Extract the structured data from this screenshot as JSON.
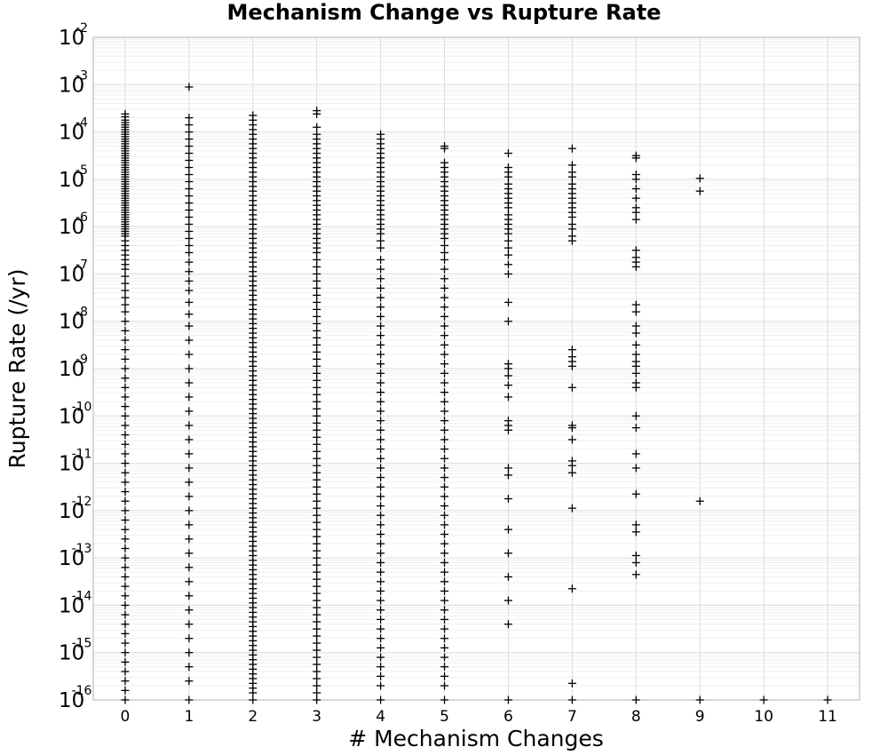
{
  "chart_data": {
    "type": "scatter",
    "title": "Mechanism Change vs Rupture Rate",
    "xlabel": "# Mechanism Changes",
    "ylabel": "Rupture Rate (/yr)",
    "x_ticks": [
      "0",
      "1",
      "2",
      "3",
      "4",
      "5",
      "6",
      "7",
      "8",
      "9",
      "10",
      "11"
    ],
    "xlim": [
      -0.5,
      11.5
    ],
    "y_scale": "log",
    "ylim": [
      1e-16,
      0.01
    ],
    "y_ticks": [
      {
        "base": "10",
        "exp": "-2"
      },
      {
        "base": "10",
        "exp": "-3"
      },
      {
        "base": "10",
        "exp": "-4"
      },
      {
        "base": "10",
        "exp": "-5"
      },
      {
        "base": "10",
        "exp": "-6"
      },
      {
        "base": "10",
        "exp": "-7"
      },
      {
        "base": "10",
        "exp": "-8"
      },
      {
        "base": "10",
        "exp": "-9"
      },
      {
        "base": "10",
        "exp": "-10"
      },
      {
        "base": "10",
        "exp": "-11"
      },
      {
        "base": "10",
        "exp": "-12"
      },
      {
        "base": "10",
        "exp": "-13"
      },
      {
        "base": "10",
        "exp": "-14"
      },
      {
        "base": "10",
        "exp": "-15"
      },
      {
        "base": "10",
        "exp": "-16"
      }
    ],
    "grid": true,
    "marker": "plus",
    "marker_color": "#000000",
    "series": [
      {
        "x": 0,
        "log10_rate": [
          -3.62,
          -3.68,
          -3.75,
          -3.8,
          -3.85,
          -3.9,
          -3.95,
          -4.0,
          -4.05,
          -4.1,
          -4.15,
          -4.2,
          -4.25,
          -4.3,
          -4.35,
          -4.4,
          -4.45,
          -4.5,
          -4.55,
          -4.6,
          -4.65,
          -4.7,
          -4.75,
          -4.8,
          -4.85,
          -4.9,
          -4.95,
          -5.0,
          -5.05,
          -5.1,
          -5.15,
          -5.2,
          -5.25,
          -5.3,
          -5.35,
          -5.4,
          -5.45,
          -5.5,
          -5.55,
          -5.6,
          -5.65,
          -5.7,
          -5.75,
          -5.8,
          -5.85,
          -5.9,
          -5.95,
          -6.0,
          -6.05,
          -6.1,
          -6.15,
          -6.2,
          -6.3,
          -6.4,
          -6.5,
          -6.6,
          -6.7,
          -6.8,
          -6.9,
          -7.05,
          -7.2,
          -7.35,
          -7.5,
          -7.65,
          -7.8,
          -8.0,
          -8.2,
          -8.4,
          -8.6,
          -8.8,
          -9.0,
          -9.2,
          -9.4,
          -9.6,
          -9.8,
          -10.0,
          -10.2,
          -10.4,
          -10.6,
          -10.8,
          -11.0,
          -11.2,
          -11.4,
          -11.6,
          -11.8,
          -12.0,
          -12.2,
          -12.4,
          -12.6,
          -12.8,
          -13.0,
          -13.2,
          -13.4,
          -13.6,
          -13.8,
          -14.0,
          -14.2,
          -14.4,
          -14.6,
          -14.8,
          -15.0,
          -15.2,
          -15.4,
          -15.6,
          -15.8,
          -16.0
        ]
      },
      {
        "x": 1,
        "log10_rate": [
          -3.05,
          -3.7,
          -3.85,
          -4.0,
          -4.15,
          -4.3,
          -4.45,
          -4.6,
          -4.75,
          -4.9,
          -5.05,
          -5.2,
          -5.35,
          -5.5,
          -5.65,
          -5.8,
          -5.95,
          -6.1,
          -6.25,
          -6.4,
          -6.55,
          -6.75,
          -6.95,
          -7.15,
          -7.35,
          -7.6,
          -7.85,
          -8.1,
          -8.4,
          -8.7,
          -9.0,
          -9.3,
          -9.6,
          -9.9,
          -10.2,
          -10.5,
          -10.8,
          -11.1,
          -11.4,
          -11.7,
          -12.0,
          -12.3,
          -12.6,
          -12.9,
          -13.2,
          -13.5,
          -13.8,
          -14.1,
          -14.4,
          -14.7,
          -15.0,
          -15.3,
          -15.6,
          -16.0
        ]
      },
      {
        "x": 2,
        "log10_rate": [
          -3.65,
          -3.75,
          -3.85,
          -3.95,
          -4.05,
          -4.15,
          -4.25,
          -4.35,
          -4.45,
          -4.55,
          -4.65,
          -4.75,
          -4.85,
          -4.95,
          -5.05,
          -5.15,
          -5.25,
          -5.35,
          -5.45,
          -5.55,
          -5.65,
          -5.75,
          -5.85,
          -5.95,
          -6.05,
          -6.15,
          -6.25,
          -6.35,
          -6.45,
          -6.55,
          -6.65,
          -6.75,
          -6.85,
          -6.95,
          -7.05,
          -7.15,
          -7.25,
          -7.35,
          -7.45,
          -7.55,
          -7.65,
          -7.75,
          -7.85,
          -7.95,
          -8.05,
          -8.15,
          -8.25,
          -8.35,
          -8.45,
          -8.55,
          -8.65,
          -8.75,
          -8.85,
          -8.95,
          -9.05,
          -9.15,
          -9.25,
          -9.35,
          -9.45,
          -9.55,
          -9.65,
          -9.75,
          -9.85,
          -9.95,
          -10.05,
          -10.15,
          -10.25,
          -10.35,
          -10.45,
          -10.55,
          -10.65,
          -10.75,
          -10.85,
          -10.95,
          -11.05,
          -11.15,
          -11.25,
          -11.35,
          -11.45,
          -11.55,
          -11.65,
          -11.75,
          -11.85,
          -11.95,
          -12.05,
          -12.15,
          -12.25,
          -12.35,
          -12.45,
          -12.55,
          -12.65,
          -12.75,
          -12.85,
          -12.95,
          -13.05,
          -13.15,
          -13.25,
          -13.35,
          -13.45,
          -13.55,
          -13.65,
          -13.75,
          -13.85,
          -13.95,
          -14.05,
          -14.15,
          -14.25,
          -14.35,
          -14.45,
          -14.55,
          -14.65,
          -14.75,
          -14.85,
          -14.95,
          -15.05,
          -15.15,
          -15.25,
          -15.35,
          -15.45,
          -15.55,
          -15.65,
          -15.75,
          -15.85,
          -16.0
        ]
      },
      {
        "x": 3,
        "log10_rate": [
          -3.55,
          -3.62,
          -3.9,
          -4.05,
          -4.15,
          -4.25,
          -4.35,
          -4.45,
          -4.55,
          -4.65,
          -4.75,
          -4.85,
          -4.95,
          -5.05,
          -5.15,
          -5.25,
          -5.35,
          -5.45,
          -5.55,
          -5.65,
          -5.75,
          -5.85,
          -5.95,
          -6.05,
          -6.15,
          -6.25,
          -6.35,
          -6.45,
          -6.55,
          -6.7,
          -6.85,
          -7.0,
          -7.15,
          -7.3,
          -7.45,
          -7.6,
          -7.75,
          -7.9,
          -8.05,
          -8.2,
          -8.35,
          -8.5,
          -8.65,
          -8.8,
          -8.95,
          -9.1,
          -9.25,
          -9.4,
          -9.55,
          -9.7,
          -9.85,
          -10.0,
          -10.15,
          -10.3,
          -10.45,
          -10.6,
          -10.75,
          -10.9,
          -11.05,
          -11.2,
          -11.35,
          -11.5,
          -11.65,
          -11.8,
          -11.95,
          -12.1,
          -12.25,
          -12.4,
          -12.55,
          -12.7,
          -12.85,
          -13.0,
          -13.15,
          -13.3,
          -13.45,
          -13.6,
          -13.75,
          -13.9,
          -14.05,
          -14.2,
          -14.35,
          -14.5,
          -14.65,
          -14.8,
          -14.95,
          -15.1,
          -15.25,
          -15.4,
          -15.55,
          -15.7,
          -15.85,
          -16.0
        ]
      },
      {
        "x": 4,
        "log10_rate": [
          -4.05,
          -4.15,
          -4.25,
          -4.35,
          -4.45,
          -4.55,
          -4.65,
          -4.75,
          -4.85,
          -4.95,
          -5.05,
          -5.15,
          -5.25,
          -5.35,
          -5.45,
          -5.55,
          -5.65,
          -5.75,
          -5.85,
          -5.95,
          -6.05,
          -6.15,
          -6.3,
          -6.45,
          -6.7,
          -6.9,
          -7.1,
          -7.3,
          -7.5,
          -7.7,
          -7.9,
          -8.1,
          -8.3,
          -8.5,
          -8.7,
          -8.9,
          -9.1,
          -9.3,
          -9.5,
          -9.7,
          -9.9,
          -10.1,
          -10.3,
          -10.5,
          -10.7,
          -10.9,
          -11.1,
          -11.3,
          -11.5,
          -11.7,
          -11.9,
          -12.1,
          -12.3,
          -12.5,
          -12.7,
          -12.9,
          -13.1,
          -13.3,
          -13.5,
          -13.7,
          -13.9,
          -14.1,
          -14.3,
          -14.5,
          -14.7,
          -14.9,
          -15.1,
          -15.3,
          -15.5,
          -15.7,
          -16.0
        ]
      },
      {
        "x": 5,
        "log10_rate": [
          -4.3,
          -4.35,
          -4.65,
          -4.75,
          -4.85,
          -4.95,
          -5.05,
          -5.15,
          -5.25,
          -5.35,
          -5.45,
          -5.55,
          -5.65,
          -5.75,
          -5.85,
          -5.95,
          -6.05,
          -6.15,
          -6.25,
          -6.4,
          -6.55,
          -6.7,
          -6.9,
          -7.1,
          -7.3,
          -7.5,
          -7.7,
          -7.9,
          -8.1,
          -8.3,
          -8.5,
          -8.7,
          -8.9,
          -9.1,
          -9.3,
          -9.5,
          -9.7,
          -9.9,
          -10.1,
          -10.3,
          -10.5,
          -10.7,
          -10.9,
          -11.1,
          -11.3,
          -11.5,
          -11.7,
          -11.9,
          -12.1,
          -12.3,
          -12.5,
          -12.7,
          -12.9,
          -13.1,
          -13.3,
          -13.5,
          -13.7,
          -13.9,
          -14.1,
          -14.3,
          -14.5,
          -14.7,
          -14.9,
          -15.1,
          -15.3,
          -15.5,
          -15.7,
          -16.0
        ]
      },
      {
        "x": 6,
        "log10_rate": [
          -4.45,
          -4.75,
          -4.85,
          -4.95,
          -5.1,
          -5.2,
          -5.3,
          -5.4,
          -5.5,
          -5.6,
          -5.75,
          -5.85,
          -5.95,
          -6.05,
          -6.15,
          -6.3,
          -6.45,
          -6.6,
          -6.8,
          -7.0,
          -7.6,
          -8.0,
          -8.9,
          -9.0,
          -9.15,
          -9.35,
          -9.6,
          -10.1,
          -10.2,
          -10.3,
          -11.1,
          -11.25,
          -11.75,
          -12.4,
          -12.9,
          -13.4,
          -13.9,
          -14.4,
          -16.0
        ]
      },
      {
        "x": 7,
        "log10_rate": [
          -4.35,
          -4.7,
          -4.85,
          -4.95,
          -5.1,
          -5.2,
          -5.3,
          -5.4,
          -5.5,
          -5.6,
          -5.7,
          -5.8,
          -5.95,
          -6.05,
          -6.2,
          -6.3,
          -8.6,
          -8.75,
          -8.85,
          -8.95,
          -9.4,
          -10.2,
          -10.25,
          -10.5,
          -10.95,
          -11.05,
          -11.2,
          -11.95,
          -13.65,
          -15.65,
          -16.0
        ]
      },
      {
        "x": 8,
        "log10_rate": [
          -4.5,
          -4.55,
          -4.9,
          -5.0,
          -5.2,
          -5.4,
          -5.6,
          -5.7,
          -5.85,
          -6.5,
          -6.65,
          -6.75,
          -6.85,
          -7.65,
          -7.8,
          -8.1,
          -8.25,
          -8.5,
          -8.7,
          -8.85,
          -8.95,
          -9.1,
          -9.3,
          -9.4,
          -10.0,
          -10.25,
          -10.8,
          -11.1,
          -11.65,
          -12.3,
          -12.45,
          -12.95,
          -13.1,
          -13.35,
          -16.0
        ]
      },
      {
        "x": 9,
        "log10_rate": [
          -4.98,
          -5.25,
          -11.8,
          -16.0
        ]
      },
      {
        "x": 10,
        "log10_rate": [
          -16.0
        ]
      },
      {
        "x": 11,
        "log10_rate": [
          -16.0
        ]
      }
    ]
  }
}
